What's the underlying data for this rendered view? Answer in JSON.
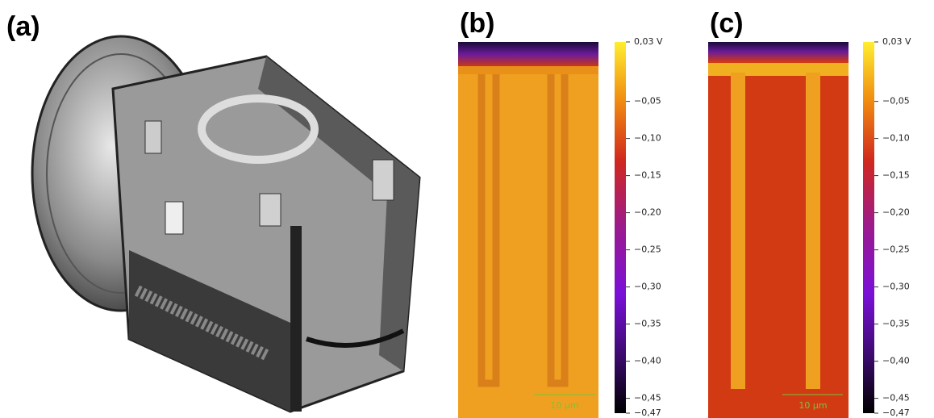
{
  "panels": [
    {
      "label": "(a)"
    },
    {
      "label": "(b)",
      "scale_bar": "10 µm",
      "colorbar_ticks": [
        {
          "value": 0.03,
          "label": "0,03 V"
        },
        {
          "value": -0.05,
          "label": "−0,05"
        },
        {
          "value": -0.1,
          "label": "−0,10"
        },
        {
          "value": -0.15,
          "label": "−0,15"
        },
        {
          "value": -0.2,
          "label": "−0,20"
        },
        {
          "value": -0.25,
          "label": "−0,25"
        },
        {
          "value": -0.3,
          "label": "−0,30"
        },
        {
          "value": -0.35,
          "label": "−0,35"
        },
        {
          "value": -0.4,
          "label": "−0,40"
        },
        {
          "value": -0.45,
          "label": "−0,45"
        },
        {
          "value": -0.47,
          "label": "−0,47"
        }
      ]
    },
    {
      "label": "(c)",
      "scale_bar": "10 µm",
      "colorbar_ticks": [
        {
          "value": 0.03,
          "label": "0,03 V"
        },
        {
          "value": -0.05,
          "label": "−0,05"
        },
        {
          "value": -0.1,
          "label": "−0,10"
        },
        {
          "value": -0.15,
          "label": "−0,15"
        },
        {
          "value": -0.2,
          "label": "−0,20"
        },
        {
          "value": -0.25,
          "label": "−0,25"
        },
        {
          "value": -0.3,
          "label": "−0,30"
        },
        {
          "value": -0.35,
          "label": "−0,35"
        },
        {
          "value": -0.4,
          "label": "−0,40"
        },
        {
          "value": -0.45,
          "label": "−0,45"
        },
        {
          "value": -0.47,
          "label": "−0,47"
        }
      ]
    }
  ]
}
